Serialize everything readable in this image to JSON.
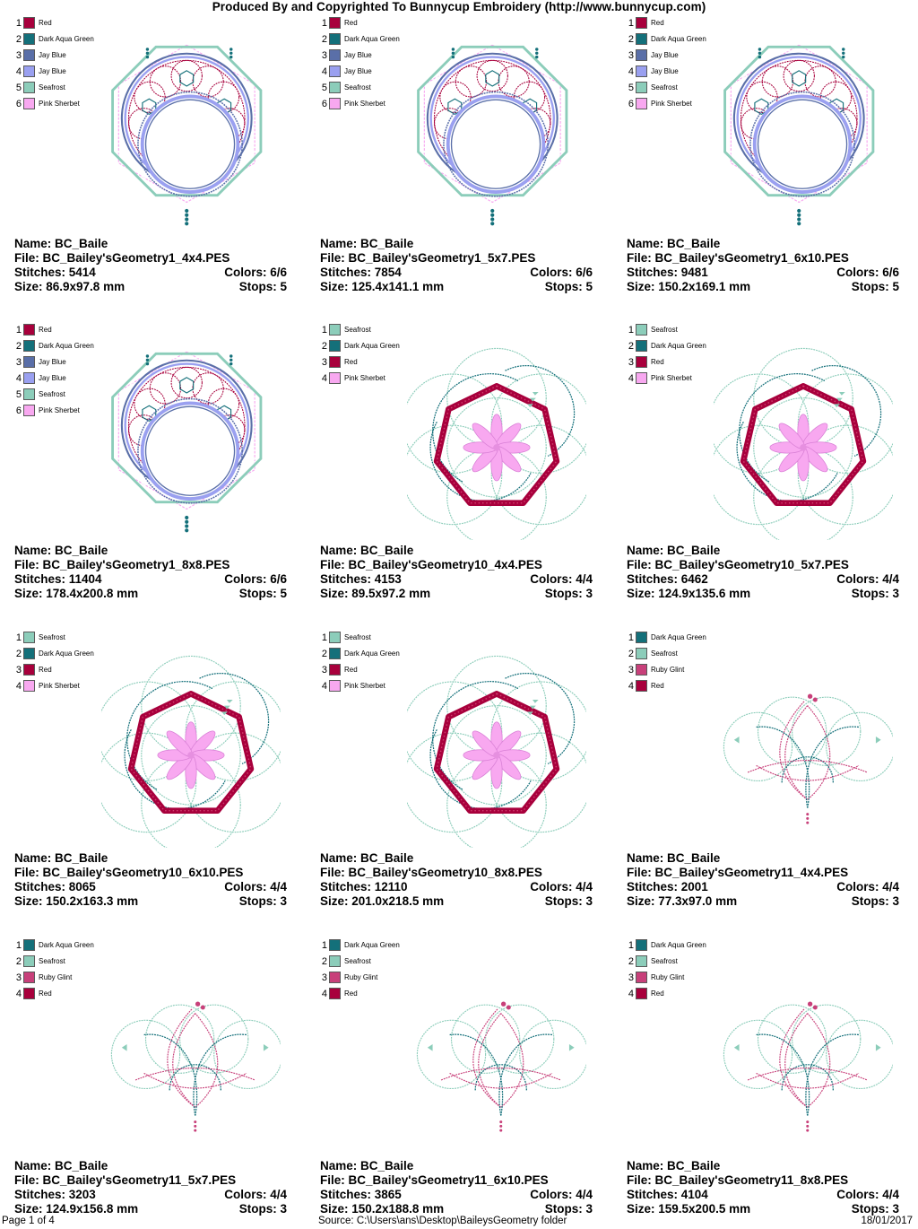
{
  "header": {
    "title": "Produced By and Copyrighted To Bunnycup Embroidery (http://www.bunnycup.com)"
  },
  "labels": {
    "name": "Name: ",
    "file": "File: ",
    "stitches": "Stitches: ",
    "size": "Size: ",
    "colors": "Colors: ",
    "stops": "Stops: "
  },
  "thread_colors": {
    "Red": "#A8003C",
    "Dark Aqua Green": "#14707A",
    "Jay Blue": "#5A6FA8",
    "Jay Blue 2": "#9AA0F0",
    "Seafrost": "#8CCDBA",
    "Pink Sherbet": "#F8A8F0",
    "Ruby Glint": "#C8407A"
  },
  "designs": [
    {
      "motif": "geometry1",
      "name": "BC_Baile",
      "file": "BC_Bailey'sGeometry1_4x4.PES",
      "stitches": "5414",
      "colors": "6/6",
      "size": "86.9x97.8 mm",
      "stops": "5",
      "threads": [
        {
          "num": "1",
          "name": "Red",
          "color": "#A8003C"
        },
        {
          "num": "2",
          "name": "Dark Aqua Green",
          "color": "#14707A"
        },
        {
          "num": "3",
          "name": "Jay Blue",
          "color": "#5A6FA8"
        },
        {
          "num": "4",
          "name": "Jay Blue",
          "color": "#9AA0F0"
        },
        {
          "num": "5",
          "name": "Seafrost",
          "color": "#8CCDBA"
        },
        {
          "num": "6",
          "name": "Pink Sherbet",
          "color": "#F8A8F0"
        }
      ]
    },
    {
      "motif": "geometry1",
      "name": "BC_Baile",
      "file": "BC_Bailey'sGeometry1_5x7.PES",
      "stitches": "7854",
      "colors": "6/6",
      "size": "125.4x141.1 mm",
      "stops": "5",
      "threads": [
        {
          "num": "1",
          "name": "Red",
          "color": "#A8003C"
        },
        {
          "num": "2",
          "name": "Dark Aqua Green",
          "color": "#14707A"
        },
        {
          "num": "3",
          "name": "Jay Blue",
          "color": "#5A6FA8"
        },
        {
          "num": "4",
          "name": "Jay Blue",
          "color": "#9AA0F0"
        },
        {
          "num": "5",
          "name": "Seafrost",
          "color": "#8CCDBA"
        },
        {
          "num": "6",
          "name": "Pink Sherbet",
          "color": "#F8A8F0"
        }
      ]
    },
    {
      "motif": "geometry1",
      "name": "BC_Baile",
      "file": "BC_Bailey'sGeometry1_6x10.PES",
      "stitches": "9481",
      "colors": "6/6",
      "size": "150.2x169.1 mm",
      "stops": "5",
      "threads": [
        {
          "num": "1",
          "name": "Red",
          "color": "#A8003C"
        },
        {
          "num": "2",
          "name": "Dark Aqua Green",
          "color": "#14707A"
        },
        {
          "num": "3",
          "name": "Jay Blue",
          "color": "#5A6FA8"
        },
        {
          "num": "4",
          "name": "Jay Blue",
          "color": "#9AA0F0"
        },
        {
          "num": "5",
          "name": "Seafrost",
          "color": "#8CCDBA"
        },
        {
          "num": "6",
          "name": "Pink Sherbet",
          "color": "#F8A8F0"
        }
      ]
    },
    {
      "motif": "geometry1",
      "name": "BC_Baile",
      "file": "BC_Bailey'sGeometry1_8x8.PES",
      "stitches": "11404",
      "colors": "6/6",
      "size": "178.4x200.8 mm",
      "stops": "5",
      "threads": [
        {
          "num": "1",
          "name": "Red",
          "color": "#A8003C"
        },
        {
          "num": "2",
          "name": "Dark Aqua Green",
          "color": "#14707A"
        },
        {
          "num": "3",
          "name": "Jay Blue",
          "color": "#5A6FA8"
        },
        {
          "num": "4",
          "name": "Jay Blue",
          "color": "#9AA0F0"
        },
        {
          "num": "5",
          "name": "Seafrost",
          "color": "#8CCDBA"
        },
        {
          "num": "6",
          "name": "Pink Sherbet",
          "color": "#F8A8F0"
        }
      ]
    },
    {
      "motif": "geometry10",
      "name": "BC_Baile",
      "file": "BC_Bailey'sGeometry10_4x4.PES",
      "stitches": "4153",
      "colors": "4/4",
      "size": "89.5x97.2 mm",
      "stops": "3",
      "threads": [
        {
          "num": "1",
          "name": "Seafrost",
          "color": "#8CCDBA"
        },
        {
          "num": "2",
          "name": "Dark Aqua Green",
          "color": "#14707A"
        },
        {
          "num": "3",
          "name": "Red",
          "color": "#A8003C"
        },
        {
          "num": "4",
          "name": "Pink Sherbet",
          "color": "#F8A8F0"
        }
      ]
    },
    {
      "motif": "geometry10",
      "name": "BC_Baile",
      "file": "BC_Bailey'sGeometry10_5x7.PES",
      "stitches": "6462",
      "colors": "4/4",
      "size": "124.9x135.6 mm",
      "stops": "3",
      "threads": [
        {
          "num": "1",
          "name": "Seafrost",
          "color": "#8CCDBA"
        },
        {
          "num": "2",
          "name": "Dark Aqua Green",
          "color": "#14707A"
        },
        {
          "num": "3",
          "name": "Red",
          "color": "#A8003C"
        },
        {
          "num": "4",
          "name": "Pink Sherbet",
          "color": "#F8A8F0"
        }
      ]
    },
    {
      "motif": "geometry10",
      "name": "BC_Baile",
      "file": "BC_Bailey'sGeometry10_6x10.PES",
      "stitches": "8065",
      "colors": "4/4",
      "size": "150.2x163.3 mm",
      "stops": "3",
      "threads": [
        {
          "num": "1",
          "name": "Seafrost",
          "color": "#8CCDBA"
        },
        {
          "num": "2",
          "name": "Dark Aqua Green",
          "color": "#14707A"
        },
        {
          "num": "3",
          "name": "Red",
          "color": "#A8003C"
        },
        {
          "num": "4",
          "name": "Pink Sherbet",
          "color": "#F8A8F0"
        }
      ]
    },
    {
      "motif": "geometry10",
      "name": "BC_Baile",
      "file": "BC_Bailey'sGeometry10_8x8.PES",
      "stitches": "12110",
      "colors": "4/4",
      "size": "201.0x218.5 mm",
      "stops": "3",
      "threads": [
        {
          "num": "1",
          "name": "Seafrost",
          "color": "#8CCDBA"
        },
        {
          "num": "2",
          "name": "Dark Aqua Green",
          "color": "#14707A"
        },
        {
          "num": "3",
          "name": "Red",
          "color": "#A8003C"
        },
        {
          "num": "4",
          "name": "Pink Sherbet",
          "color": "#F8A8F0"
        }
      ]
    },
    {
      "motif": "geometry11",
      "name": "BC_Baile",
      "file": "BC_Bailey'sGeometry11_4x4.PES",
      "stitches": "2001",
      "colors": "4/4",
      "size": "77.3x97.0 mm",
      "stops": "3",
      "threads": [
        {
          "num": "1",
          "name": "Dark Aqua Green",
          "color": "#14707A"
        },
        {
          "num": "2",
          "name": "Seafrost",
          "color": "#8CCDBA"
        },
        {
          "num": "3",
          "name": "Ruby Glint",
          "color": "#C8407A"
        },
        {
          "num": "4",
          "name": "Red",
          "color": "#A8003C"
        }
      ]
    },
    {
      "motif": "geometry11",
      "name": "BC_Baile",
      "file": "BC_Bailey'sGeometry11_5x7.PES",
      "stitches": "3203",
      "colors": "4/4",
      "size": "124.9x156.8 mm",
      "stops": "3",
      "threads": [
        {
          "num": "1",
          "name": "Dark Aqua Green",
          "color": "#14707A"
        },
        {
          "num": "2",
          "name": "Seafrost",
          "color": "#8CCDBA"
        },
        {
          "num": "3",
          "name": "Ruby Glint",
          "color": "#C8407A"
        },
        {
          "num": "4",
          "name": "Red",
          "color": "#A8003C"
        }
      ]
    },
    {
      "motif": "geometry11",
      "name": "BC_Baile",
      "file": "BC_Bailey'sGeometry11_6x10.PES",
      "stitches": "3865",
      "colors": "4/4",
      "size": "150.2x188.8 mm",
      "stops": "3",
      "threads": [
        {
          "num": "1",
          "name": "Dark Aqua Green",
          "color": "#14707A"
        },
        {
          "num": "2",
          "name": "Seafrost",
          "color": "#8CCDBA"
        },
        {
          "num": "3",
          "name": "Ruby Glint",
          "color": "#C8407A"
        },
        {
          "num": "4",
          "name": "Red",
          "color": "#A8003C"
        }
      ]
    },
    {
      "motif": "geometry11",
      "name": "BC_Baile",
      "file": "BC_Bailey'sGeometry11_8x8.PES",
      "stitches": "4104",
      "colors": "4/4",
      "size": "159.5x200.5 mm",
      "stops": "3",
      "threads": [
        {
          "num": "1",
          "name": "Dark Aqua Green",
          "color": "#14707A"
        },
        {
          "num": "2",
          "name": "Seafrost",
          "color": "#8CCDBA"
        },
        {
          "num": "3",
          "name": "Ruby Glint",
          "color": "#C8407A"
        },
        {
          "num": "4",
          "name": "Red",
          "color": "#A8003C"
        }
      ]
    }
  ],
  "footer": {
    "page": "Page 1 of 4",
    "source": "Source: C:\\Users\\ans\\Desktop\\BaileysGeometry folder",
    "date": "18/01/2017"
  }
}
